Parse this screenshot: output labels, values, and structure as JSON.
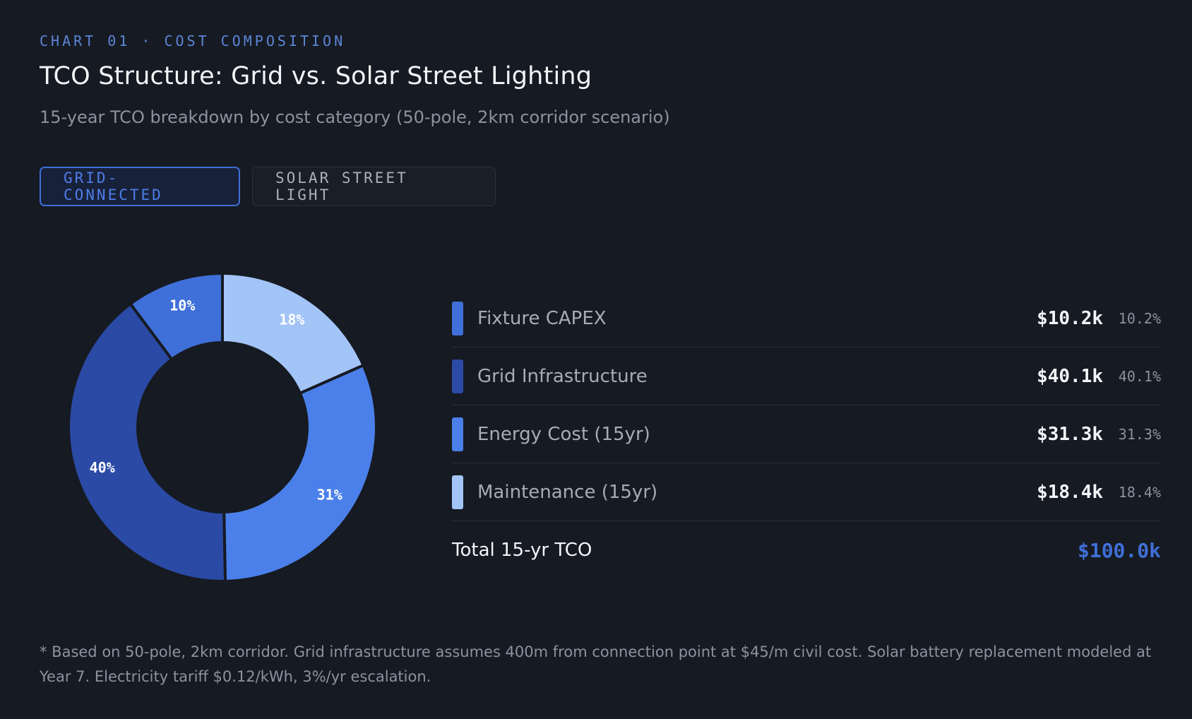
{
  "header": {
    "eyebrow": "CHART 01 · COST COMPOSITION",
    "title": "TCO Structure: Grid vs. Solar Street Lighting",
    "subtitle": "15-year TCO breakdown by cost category (50-pole, 2km corridor scenario)"
  },
  "tabs": [
    {
      "label": "GRID-CONNECTED",
      "active": true
    },
    {
      "label": "SOLAR STREET LIGHT",
      "active": false
    }
  ],
  "chart_data": {
    "type": "pie",
    "categories": [
      "Fixture CAPEX",
      "Grid Infrastructure",
      "Energy Cost (15yr)",
      "Maintenance (15yr)"
    ],
    "values": [
      10.2,
      40.1,
      31.3,
      18.4
    ],
    "slice_labels": [
      "10%",
      "40%",
      "31%",
      "18%"
    ],
    "colors": [
      "#3f6fd8",
      "#2a4aa5",
      "#4b80ea",
      "#a3c4f7"
    ],
    "donut": true,
    "start_angle_deg": 90,
    "direction": "counterclockwise"
  },
  "legend": {
    "items": [
      {
        "label": "Fixture CAPEX",
        "value": "$10.2k",
        "pct": "10.2%",
        "color": "#3f6fd8"
      },
      {
        "label": "Grid Infrastructure",
        "value": "$40.1k",
        "pct": "40.1%",
        "color": "#2a4aa5"
      },
      {
        "label": "Energy Cost (15yr)",
        "value": "$31.3k",
        "pct": "31.3%",
        "color": "#4b80ea"
      },
      {
        "label": "Maintenance (15yr)",
        "value": "$18.4k",
        "pct": "18.4%",
        "color": "#a3c4f7"
      }
    ],
    "total_label": "Total 15-yr TCO",
    "total_value": "$100.0k"
  },
  "footnote": "* Based on 50-pole, 2km corridor. Grid infrastructure assumes 400m from connection point at $45/m civil cost. Solar battery replacement modeled at Year 7. Electricity tariff $0.12/kWh, 3%/yr escalation."
}
